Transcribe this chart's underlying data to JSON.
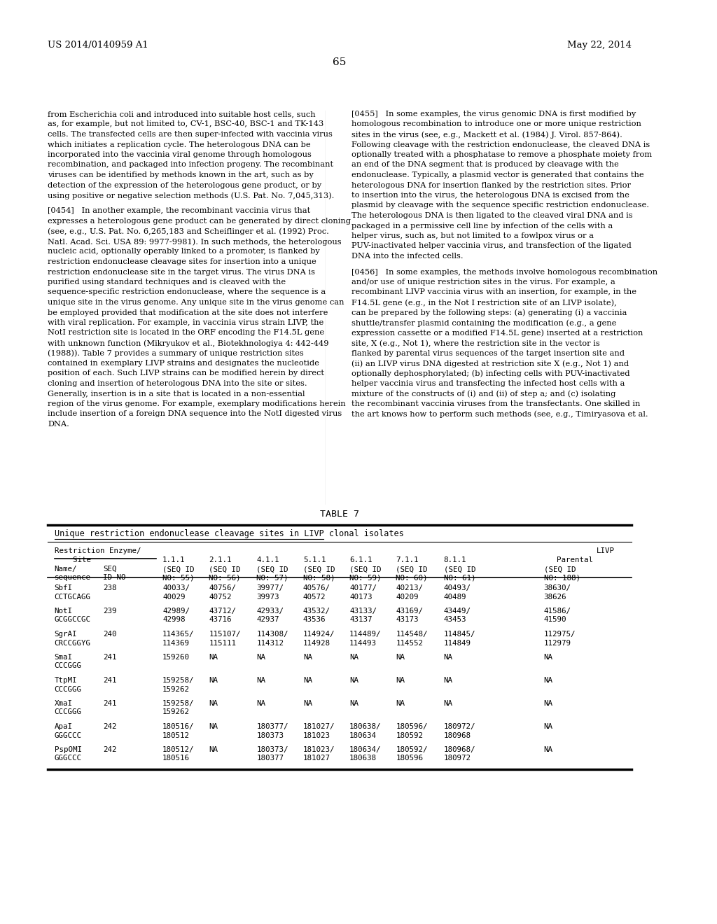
{
  "background_color": "#ffffff",
  "page_number": "65",
  "header_left": "US 2014/0140959 A1",
  "header_right": "May 22, 2014",
  "left_col_paragraphs": [
    "from ​Escherichia coli​ and introduced into suitable host cells, such as, for example, but not limited to, CV-1, BSC-40, BSC-1 and TK-143 cells. The transfected cells are then super-infected with vaccinia virus which initiates a replication cycle. The heterologous DNA can be incorporated into the vaccinia viral genome through homologous recombination, and packaged into infection progeny. The recombinant viruses can be identified by methods known in the art, such as by detection of the expression of the heterologous gene product, or by using positive or negative selection methods (U.S. Pat. No. 7,045,313).",
    "[0454]   In another example, the recombinant vaccinia virus that expresses a heterologous gene product can be generated by direct cloning (see, e.g., U.S. Pat. No. 6,265,183 and Scheiflinger et al. (1992) Proc. Natl. Acad. Sci. USA 89: 9977-9981). In such methods, the heterologous nucleic acid, optionally operably linked to a promoter, is flanked by restriction endonuclease cleavage sites for insertion into a unique restriction endonuclease site in the target virus. The virus DNA is purified using standard techniques and is cleaved with the sequence-specific restriction endonuclease, where the sequence is a unique site in the virus genome. Any unique site in the virus genome can be employed provided that modification at the site does not interfere with viral replication. For example, in vaccinia virus strain LIVP, the NotI restriction site is located in the ORF encoding the F14.5L gene with unknown function (Mikryukov et al., Biotekhnologiya 4: 442-449 (1988)). Table 7 provides a summary of unique restriction sites contained in exemplary LIVP strains and designates the nucleotide position of each. Such LIVP strains can be modified herein by direct cloning and insertion of heterologous DNA into the site or sites. Generally, insertion is in a site that is located in a non-essential region of the virus genome. For example, exemplary modifications herein include insertion of a foreign DNA sequence into the NotI digested virus DNA."
  ],
  "right_col_paragraphs": [
    "[0455]   In some examples, the virus genomic DNA is first modified by homologous recombination to introduce one or more unique restriction sites in the virus (see, e.g., Mackett et al. (1984) J. Virol. 857-864). Following cleavage with the restriction endonuclease, the cleaved DNA is optionally treated with a phosphatase to remove a phosphate moiety from an end of the DNA segment that is produced by cleavage with the endonuclease. Typically, a plasmid vector is generated that contains the heterologous DNA for insertion flanked by the restriction sites. Prior to insertion into the virus, the heterologous DNA is excised from the plasmid by cleavage with the sequence specific restriction endonuclease. The heterologous DNA is then ligated to the cleaved viral DNA and is packaged in a permissive cell line by infection of the cells with a helper virus, such as, but not limited to a fowlpox virus or a PUV-inactivated helper vaccinia virus, and transfection of the ligated DNA into the infected cells.",
    "[0456]   In some examples, the methods involve homologous recombination and/or use of unique restriction sites in the virus. For example, a recombinant LIVP vaccinia virus with an insertion, for example, in the F14.5L gene (e.g., in the Not I restriction site of an LIVP isolate), can be prepared by the following steps: (a) generating (i) a vaccinia shuttle/transfer plasmid containing the modification (e.g., a gene expression cassette or a modified F14.5L gene) inserted at a restriction site, X (e.g., Not 1), where the restriction site in the vector is flanked by parental virus sequences of the target insertion site and (ii) an LIVP virus DNA digested at restriction site X (e.g., Not 1) and optionally dephosphorylated; (b) infecting cells with PUV-inactivated helper vaccinia virus and transfecting the infected host cells with a mixture of the constructs of (i) and (ii) of step a; and (c) isolating the recombinant vaccinia viruses from the transfectants. One skilled in the art knows how to perform such methods (see, e.g., Timiryasova et al."
  ],
  "table_title": "TABLE 7",
  "table_subtitle": "Unique restriction endonuclease cleavage sites in LIVP clonal isolates",
  "table_header1": [
    "Restriction Enzyme/",
    "",
    "",
    "",
    "",
    "",
    "",
    "",
    "LIVP"
  ],
  "table_header2": [
    "    Site",
    "1.1.1",
    "2.1.1",
    "4.1.1",
    "5.1.1",
    "6.1.1",
    "7.1.1",
    "8.1.1",
    "Parental"
  ],
  "table_header3": [
    "Name/",
    "SEQ",
    "(SEQ ID",
    "(SEQ ID",
    "(SEQ ID",
    "(SEQ ID",
    "(SEQ ID",
    "(SEQ ID",
    "(SEQ ID",
    "(SEQ ID"
  ],
  "table_header4": [
    "sequence",
    "ID NO",
    "NO: 55)",
    "NO: 56)",
    "NO: 57)",
    "NO: 58)",
    "NO: 59)",
    "NO: 60)",
    "NO: 61)",
    "NO: 188)"
  ],
  "table_rows": [
    [
      "SbfI",
      "238",
      "40033/",
      "40756/",
      "39977/",
      "40576/",
      "40177/",
      "40213/",
      "40493/",
      "38630/"
    ],
    [
      "CCTGCAGG",
      "",
      "40029",
      "40752",
      "39973",
      "40572",
      "40173",
      "40209",
      "40489",
      "38626"
    ],
    [
      "NotI",
      "239",
      "42989/",
      "43712/",
      "42933/",
      "43532/",
      "43133/",
      "43169/",
      "43449/",
      "41586/"
    ],
    [
      "GCGGCCGC",
      "",
      "42998",
      "43716",
      "42937",
      "43536",
      "43137",
      "43173",
      "43453",
      "41590"
    ],
    [
      "SgrAI",
      "240",
      "114365/",
      "115107/",
      "114308/",
      "114924/",
      "114489/",
      "114548/",
      "114845/",
      "112975/"
    ],
    [
      "CRCCGGYG",
      "",
      "114369",
      "115111",
      "114312",
      "114928",
      "114493",
      "114552",
      "114849",
      "112979"
    ],
    [
      "SmaI",
      "241",
      "159260",
      "NA",
      "NA",
      "NA",
      "NA",
      "NA",
      "NA",
      "NA"
    ],
    [
      "CCCGGG",
      "",
      "",
      "",
      "",
      "",
      "",
      "",
      "",
      ""
    ],
    [
      "TtpMI",
      "241",
      "159258/",
      "NA",
      "NA",
      "NA",
      "NA",
      "NA",
      "NA",
      "NA"
    ],
    [
      "CCCGGG",
      "",
      "159262",
      "",
      "",
      "",
      "",
      "",
      "",
      ""
    ],
    [
      "XmaI",
      "241",
      "159258/",
      "NA",
      "NA",
      "NA",
      "NA",
      "NA",
      "NA",
      "NA"
    ],
    [
      "CCCGGG",
      "",
      "159262",
      "",
      "",
      "",
      "",
      "",
      "",
      ""
    ],
    [
      "ApaI",
      "242",
      "180516/",
      "NA",
      "180377/",
      "181027/",
      "180638/",
      "180596/",
      "180972/",
      "NA"
    ],
    [
      "GGGCCC",
      "",
      "180512",
      "",
      "180373",
      "181023",
      "180634",
      "180592",
      "180968",
      ""
    ],
    [
      "PspOMI",
      "242",
      "180512/",
      "NA",
      "180373/",
      "181023/",
      "180634/",
      "180592/",
      "180968/",
      "NA"
    ],
    [
      "GGGCCC",
      "",
      "180516",
      "",
      "180377",
      "181027",
      "180638",
      "180596",
      "180972",
      ""
    ]
  ]
}
